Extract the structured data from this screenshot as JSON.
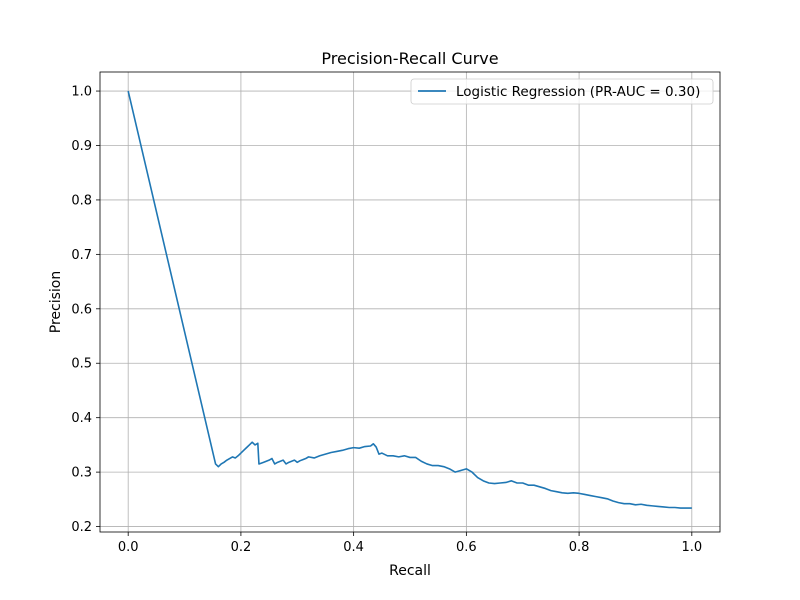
{
  "chart_data": {
    "type": "line",
    "title": "Precision-Recall Curve",
    "xlabel": "Recall",
    "ylabel": "Precision",
    "xlim": [
      -0.05,
      1.05
    ],
    "ylim": [
      0.19,
      1.035
    ],
    "xticks": [
      0.0,
      0.2,
      0.4,
      0.6,
      0.8,
      1.0
    ],
    "xtick_labels": [
      "0.0",
      "0.2",
      "0.4",
      "0.6",
      "0.8",
      "1.0"
    ],
    "yticks": [
      0.2,
      0.3,
      0.4,
      0.5,
      0.6,
      0.7,
      0.8,
      0.9,
      1.0
    ],
    "ytick_labels": [
      "0.2",
      "0.3",
      "0.4",
      "0.5",
      "0.6",
      "0.7",
      "0.8",
      "0.9",
      "1.0"
    ],
    "grid": true,
    "legend_position": "top-right",
    "series": [
      {
        "name": "Logistic Regression (PR-AUC = 0.30)",
        "color": "#1f77b4",
        "x": [
          0.0,
          0.155,
          0.16,
          0.165,
          0.17,
          0.175,
          0.18,
          0.185,
          0.19,
          0.195,
          0.2,
          0.205,
          0.21,
          0.215,
          0.22,
          0.225,
          0.23,
          0.232,
          0.24,
          0.245,
          0.25,
          0.255,
          0.26,
          0.265,
          0.27,
          0.275,
          0.28,
          0.285,
          0.29,
          0.295,
          0.3,
          0.305,
          0.31,
          0.315,
          0.32,
          0.33,
          0.34,
          0.35,
          0.36,
          0.37,
          0.38,
          0.39,
          0.4,
          0.41,
          0.42,
          0.43,
          0.435,
          0.44,
          0.445,
          0.45,
          0.46,
          0.47,
          0.48,
          0.49,
          0.5,
          0.51,
          0.52,
          0.53,
          0.54,
          0.55,
          0.56,
          0.57,
          0.58,
          0.59,
          0.6,
          0.61,
          0.62,
          0.63,
          0.64,
          0.65,
          0.66,
          0.67,
          0.68,
          0.69,
          0.7,
          0.71,
          0.72,
          0.73,
          0.74,
          0.75,
          0.76,
          0.77,
          0.78,
          0.79,
          0.8,
          0.81,
          0.82,
          0.83,
          0.84,
          0.85,
          0.86,
          0.87,
          0.88,
          0.89,
          0.9,
          0.91,
          0.92,
          0.93,
          0.94,
          0.95,
          0.96,
          0.97,
          0.98,
          0.99,
          1.0
        ],
        "y": [
          1.0,
          0.315,
          0.31,
          0.315,
          0.318,
          0.322,
          0.325,
          0.328,
          0.326,
          0.33,
          0.335,
          0.34,
          0.345,
          0.35,
          0.355,
          0.35,
          0.353,
          0.315,
          0.318,
          0.32,
          0.322,
          0.325,
          0.315,
          0.318,
          0.32,
          0.322,
          0.315,
          0.318,
          0.32,
          0.322,
          0.318,
          0.321,
          0.323,
          0.325,
          0.328,
          0.326,
          0.33,
          0.333,
          0.336,
          0.338,
          0.34,
          0.343,
          0.345,
          0.344,
          0.347,
          0.348,
          0.352,
          0.346,
          0.333,
          0.335,
          0.33,
          0.33,
          0.328,
          0.33,
          0.327,
          0.327,
          0.32,
          0.315,
          0.312,
          0.312,
          0.31,
          0.306,
          0.3,
          0.303,
          0.306,
          0.3,
          0.29,
          0.284,
          0.28,
          0.279,
          0.28,
          0.281,
          0.284,
          0.28,
          0.28,
          0.276,
          0.276,
          0.273,
          0.27,
          0.266,
          0.264,
          0.262,
          0.261,
          0.262,
          0.261,
          0.259,
          0.257,
          0.255,
          0.253,
          0.251,
          0.247,
          0.244,
          0.242,
          0.242,
          0.24,
          0.241,
          0.239,
          0.238,
          0.237,
          0.236,
          0.235,
          0.235,
          0.234,
          0.234,
          0.234
        ]
      }
    ]
  }
}
